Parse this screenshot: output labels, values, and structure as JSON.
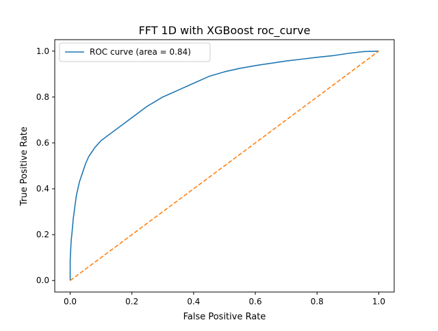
{
  "chart_data": {
    "type": "line",
    "title": "FFT 1D with XGBoost roc_curve",
    "xlabel": "False Positive Rate",
    "ylabel": "True Positive Rate",
    "xlim": [
      -0.05,
      1.05
    ],
    "ylim": [
      -0.05,
      1.05
    ],
    "grid": false,
    "legend_position": "upper left",
    "xticks": [
      "0.0",
      "0.2",
      "0.4",
      "0.6",
      "0.8",
      "1.0"
    ],
    "yticks": [
      "0.0",
      "0.2",
      "0.4",
      "0.6",
      "0.8",
      "1.0"
    ],
    "series": [
      {
        "name": "ROC curve (area = 0.84)",
        "color": "#1f77b4",
        "style": "solid",
        "x": [
          0.0,
          0.0,
          0.003,
          0.006,
          0.01,
          0.015,
          0.02,
          0.03,
          0.04,
          0.05,
          0.06,
          0.07,
          0.08,
          0.1,
          0.12,
          0.15,
          0.18,
          0.2,
          0.25,
          0.3,
          0.35,
          0.4,
          0.45,
          0.5,
          0.55,
          0.6,
          0.65,
          0.7,
          0.75,
          0.8,
          0.85,
          0.9,
          0.95,
          1.0
        ],
        "y": [
          0.0,
          0.09,
          0.17,
          0.21,
          0.27,
          0.32,
          0.37,
          0.43,
          0.47,
          0.51,
          0.54,
          0.56,
          0.58,
          0.61,
          0.63,
          0.66,
          0.69,
          0.71,
          0.76,
          0.8,
          0.83,
          0.86,
          0.89,
          0.91,
          0.925,
          0.937,
          0.947,
          0.957,
          0.965,
          0.973,
          0.98,
          0.99,
          0.998,
          1.0
        ]
      },
      {
        "name": "",
        "color": "#ff7f0e",
        "style": "dashed",
        "x": [
          0.0,
          1.0
        ],
        "y": [
          0.0,
          1.0
        ]
      }
    ]
  }
}
